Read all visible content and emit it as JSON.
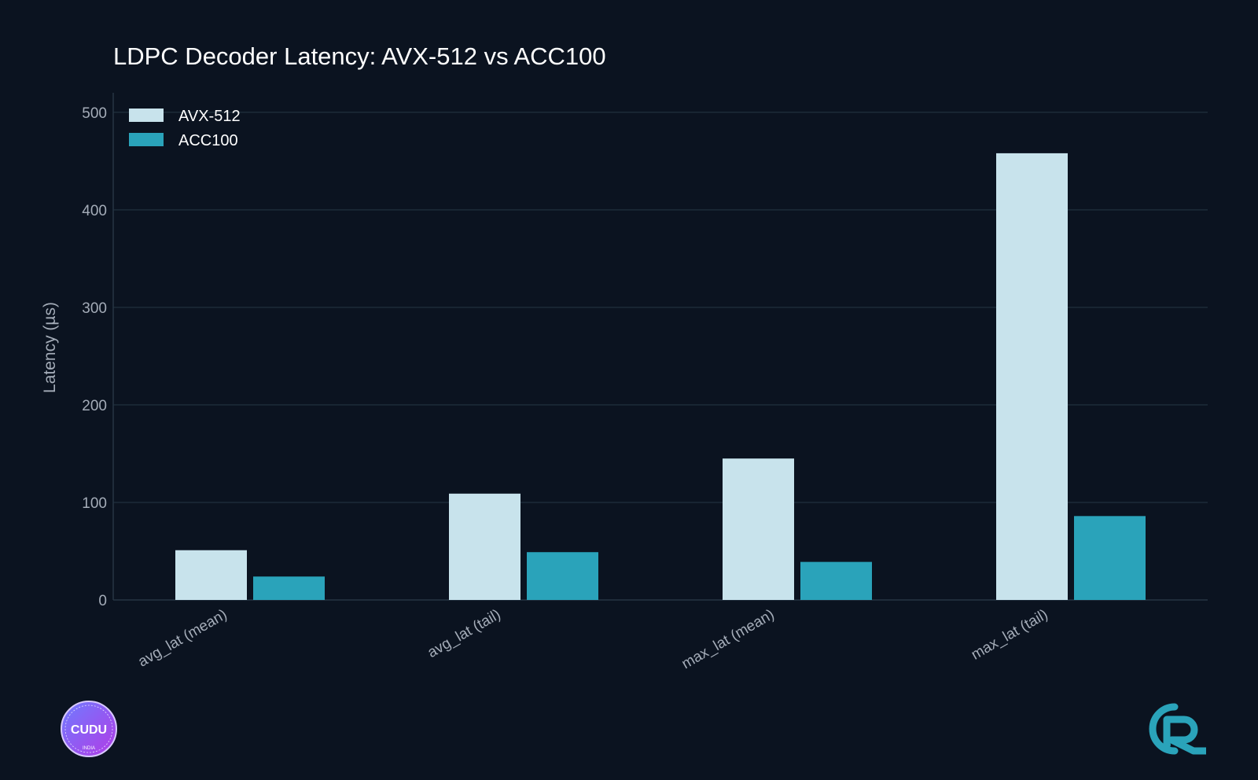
{
  "chart_data": {
    "type": "bar",
    "title": "LDPC Decoder Latency: AVX-512 vs ACC100",
    "xlabel": "",
    "ylabel": "Latency (µs)",
    "ylim": [
      0,
      520
    ],
    "yticks": [
      0,
      100,
      200,
      300,
      400,
      500
    ],
    "grid": true,
    "legend_position": "top-left",
    "categories": [
      "avg_lat (mean)",
      "avg_lat (tail)",
      "max_lat (mean)",
      "max_lat (tail)"
    ],
    "series": [
      {
        "name": "AVX-512",
        "color": "#c8e3ec",
        "values": [
          51,
          109,
          145,
          458
        ]
      },
      {
        "name": "ACC100",
        "color": "#2aa3ba",
        "values": [
          24,
          49,
          39,
          86
        ]
      }
    ]
  },
  "logos": {
    "left": {
      "text": "CUDU",
      "subtext": "INDIA",
      "icon": "cudu-badge-icon"
    },
    "right": {
      "icon": "r-brand-logo-icon",
      "color": "#2aa3ba"
    }
  },
  "colors": {
    "background": "#0b1320",
    "grid": "#1c2b38",
    "text": "#ffffff",
    "tick_text": "#a4acb8"
  }
}
